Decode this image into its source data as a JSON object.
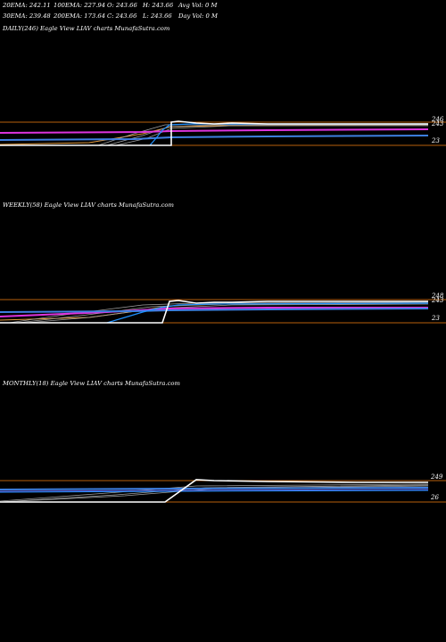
{
  "header": {
    "stats": [
      [
        "20EMA: 242.11",
        "100EMA: 227.94",
        "O: 243.66",
        "H: 243.66",
        "Avg Vol: 0  M"
      ],
      [
        "30EMA: 239.48",
        "200EMA: 173.64",
        "C: 243.66",
        "L: 243.66",
        "Day Vol: 0  M"
      ]
    ]
  },
  "panels": [
    {
      "label": "DAILY(246) Eagle   View  LIAV charts MunafaSutra.com",
      "ticks": [
        "246",
        "243",
        "23"
      ]
    },
    {
      "label": "WEEKLY(58) Eagle   View  LIAV charts MunafaSutra.com",
      "ticks": [
        "248",
        "243",
        "23"
      ]
    },
    {
      "label": "MONTHLY(18) Eagle   View  LIAV charts MunafaSutra.com",
      "ticks": [
        "249",
        "26"
      ]
    }
  ],
  "colors": {
    "background": "#000000",
    "price": "#ffffff",
    "resistance_line": "#b8600c",
    "ema_magenta": "#dd33dd",
    "ema_blue": "#3d7fe0",
    "ema_bright_blue": "#1e90ff",
    "ema_orange": "#e39a3c",
    "ema_grey": "#a0a0a0"
  },
  "chart_data": [
    {
      "type": "line",
      "timeframe": "daily",
      "series": [
        {
          "name": "",
          "values": [
            23,
            23,
            23,
            23,
            243,
            246,
            244,
            244,
            244,
            243.66
          ]
        }
      ],
      "reference_levels": [
        246,
        243,
        23
      ]
    },
    {
      "type": "line",
      "timeframe": "weekly",
      "series": [
        {
          "name": "",
          "values": [
            23,
            23,
            23,
            23,
            243,
            248,
            245,
            244,
            244,
            243.66
          ]
        }
      ],
      "reference_levels": [
        248,
        243,
        23
      ]
    },
    {
      "type": "line",
      "timeframe": "monthly",
      "series": [
        {
          "name": "",
          "values": [
            26,
            26,
            26,
            26,
            249,
            247,
            246,
            245,
            245,
            243.66
          ]
        }
      ],
      "reference_levels": [
        249,
        26
      ]
    }
  ]
}
